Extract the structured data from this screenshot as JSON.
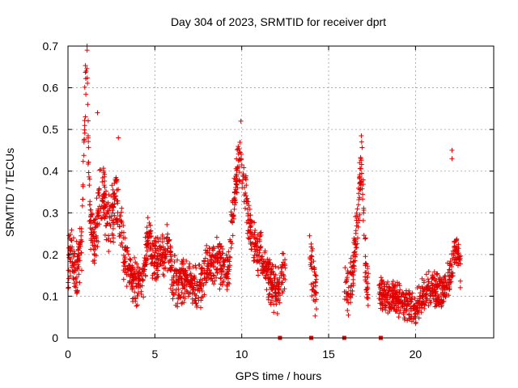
{
  "chart_data": {
    "type": "scatter",
    "title": "Day 304 of 2023, SRMTID for receiver dprt",
    "xlabel": "GPS time / hours",
    "ylabel": "SRMTID / TECUs",
    "xlim": [
      0,
      24.5
    ],
    "ylim": [
      0,
      0.7
    ],
    "xticks": [
      0,
      5,
      10,
      15,
      20
    ],
    "yticks": [
      0,
      0.1,
      0.2,
      0.3,
      0.4,
      0.5,
      0.6,
      0.7
    ],
    "ytick_labels": [
      "0",
      "0.1",
      "0.2",
      "0.3",
      "0.4",
      "0.5",
      "0.6",
      "0.7"
    ],
    "grid": true,
    "marker": "+",
    "color": "#e00000",
    "series": [
      {
        "name": "SRMTID",
        "segments": [
          {
            "x_start": 0.0,
            "x_end": 3.2,
            "keys": [
              [
                0.0,
                0.17
              ],
              [
                0.2,
                0.22
              ],
              [
                0.4,
                0.16
              ],
              [
                0.6,
                0.19
              ],
              [
                0.8,
                0.24
              ],
              [
                0.9,
                0.45
              ],
              [
                1.0,
                0.6
              ],
              [
                1.1,
                0.68
              ],
              [
                1.2,
                0.35
              ],
              [
                1.4,
                0.22
              ],
              [
                1.6,
                0.25
              ],
              [
                1.8,
                0.32
              ],
              [
                2.0,
                0.36
              ],
              [
                2.2,
                0.3
              ],
              [
                2.4,
                0.27
              ],
              [
                2.6,
                0.3
              ],
              [
                2.8,
                0.33
              ],
              [
                3.0,
                0.27
              ],
              [
                3.2,
                0.22
              ]
            ],
            "spread": 0.05
          },
          {
            "x_start": 3.2,
            "x_end": 9.3,
            "keys": [
              [
                3.2,
                0.2
              ],
              [
                3.6,
                0.15
              ],
              [
                4.0,
                0.13
              ],
              [
                4.4,
                0.16
              ],
              [
                4.6,
                0.24
              ],
              [
                5.0,
                0.18
              ],
              [
                5.4,
                0.2
              ],
              [
                5.8,
                0.22
              ],
              [
                6.0,
                0.14
              ],
              [
                6.4,
                0.13
              ],
              [
                6.8,
                0.14
              ],
              [
                7.2,
                0.13
              ],
              [
                7.6,
                0.12
              ],
              [
                8.0,
                0.17
              ],
              [
                8.4,
                0.19
              ],
              [
                8.8,
                0.17
              ],
              [
                9.3,
                0.16
              ]
            ],
            "spread": 0.04
          },
          {
            "x_start": 9.3,
            "x_end": 12.5,
            "keys": [
              [
                9.3,
                0.22
              ],
              [
                9.5,
                0.3
              ],
              [
                9.7,
                0.38
              ],
              [
                9.9,
                0.44
              ],
              [
                10.1,
                0.38
              ],
              [
                10.3,
                0.32
              ],
              [
                10.5,
                0.25
              ],
              [
                10.8,
                0.22
              ],
              [
                11.1,
                0.2
              ],
              [
                11.4,
                0.16
              ],
              [
                11.7,
                0.13
              ],
              [
                12.0,
                0.11
              ],
              [
                12.2,
                0.13
              ],
              [
                12.5,
                0.17
              ]
            ],
            "spread": 0.04
          },
          {
            "x_start": 13.9,
            "x_end": 14.3,
            "keys": [
              [
                13.9,
                0.2
              ],
              [
                14.1,
                0.14
              ],
              [
                14.3,
                0.1
              ]
            ],
            "spread": 0.05
          },
          {
            "x_start": 15.9,
            "x_end": 17.3,
            "keys": [
              [
                15.9,
                0.12
              ],
              [
                16.2,
                0.09
              ],
              [
                16.5,
                0.2
              ],
              [
                16.7,
                0.32
              ],
              [
                16.9,
                0.42
              ],
              [
                17.1,
                0.18
              ],
              [
                17.3,
                0.1
              ]
            ],
            "spread": 0.05
          },
          {
            "x_start": 17.9,
            "x_end": 22.6,
            "keys": [
              [
                17.9,
                0.11
              ],
              [
                18.5,
                0.1
              ],
              [
                19.0,
                0.09
              ],
              [
                19.5,
                0.08
              ],
              [
                20.0,
                0.07
              ],
              [
                20.5,
                0.11
              ],
              [
                21.0,
                0.12
              ],
              [
                21.5,
                0.11
              ],
              [
                22.0,
                0.15
              ],
              [
                22.3,
                0.22
              ],
              [
                22.6,
                0.16
              ]
            ],
            "spread": 0.03
          }
        ],
        "peaks": [
          [
            1.1,
            0.7
          ],
          [
            1.1,
            0.69
          ],
          [
            1.05,
            0.64
          ],
          [
            1.7,
            0.54
          ],
          [
            2.9,
            0.48
          ],
          [
            9.95,
            0.52
          ],
          [
            22.1,
            0.45
          ],
          [
            22.1,
            0.43
          ],
          [
            16.9,
            0.47
          ]
        ],
        "zero_points": [
          12.2,
          14.0,
          15.9,
          18.0
        ]
      }
    ]
  }
}
